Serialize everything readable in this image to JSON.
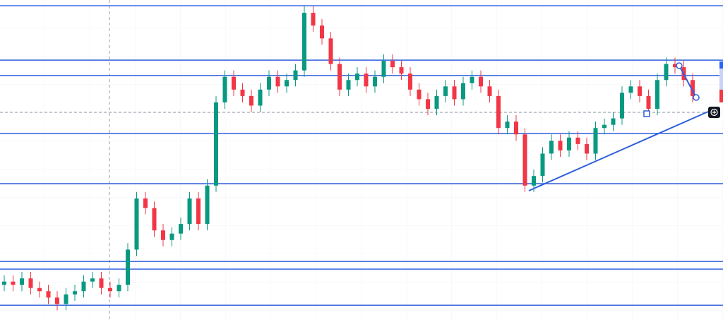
{
  "chart_data": {
    "type": "candlestick",
    "ylim": [
      0,
      100
    ],
    "up_color": "#089981",
    "down_color": "#f23645",
    "level_color": "#2f5fdb",
    "open": [
      11,
      12,
      11,
      13,
      10,
      9,
      7,
      5,
      8,
      9,
      12,
      13,
      10,
      9,
      11,
      22,
      38,
      35,
      28,
      25,
      27,
      30,
      38,
      30,
      42,
      68,
      76,
      72,
      70,
      67,
      72,
      76,
      73,
      75,
      78,
      96,
      92,
      88,
      80,
      72,
      75,
      77,
      73,
      76,
      81,
      79,
      77,
      72,
      69,
      66,
      70,
      73,
      69,
      74,
      76,
      73,
      70,
      60,
      62,
      58,
      42,
      45,
      52,
      56,
      53,
      57,
      55,
      52,
      60,
      61,
      63,
      71,
      73,
      70,
      66,
      75,
      80,
      79,
      75
    ],
    "high": [
      14,
      14,
      15,
      15,
      12,
      11,
      9,
      10,
      11,
      14,
      15,
      15,
      12,
      13,
      24,
      40,
      40,
      37,
      30,
      29,
      32,
      40,
      40,
      44,
      70,
      78,
      78,
      74,
      72,
      74,
      78,
      78,
      77,
      80,
      98,
      98,
      94,
      90,
      82,
      77,
      79,
      79,
      78,
      83,
      83,
      81,
      79,
      74,
      71,
      72,
      75,
      75,
      76,
      78,
      78,
      75,
      72,
      64,
      64,
      60,
      47,
      54,
      58,
      58,
      59,
      59,
      57,
      62,
      63,
      65,
      73,
      75,
      75,
      72,
      77,
      82,
      82,
      81,
      77
    ],
    "low": [
      9,
      9,
      9,
      8,
      7,
      5,
      3,
      3,
      6,
      7,
      10,
      8,
      7,
      7,
      9,
      20,
      33,
      26,
      23,
      23,
      25,
      28,
      28,
      28,
      40,
      66,
      70,
      68,
      65,
      65,
      70,
      71,
      71,
      73,
      76,
      90,
      86,
      78,
      70,
      70,
      73,
      71,
      71,
      74,
      77,
      75,
      70,
      67,
      64,
      64,
      68,
      67,
      67,
      72,
      71,
      68,
      58,
      58,
      56,
      40,
      40,
      43,
      50,
      51,
      51,
      53,
      50,
      50,
      58,
      59,
      61,
      69,
      68,
      64,
      64,
      73,
      77,
      73,
      68
    ],
    "close": [
      12,
      11,
      13,
      10,
      9,
      7,
      5,
      8,
      9,
      12,
      13,
      10,
      9,
      11,
      22,
      38,
      35,
      28,
      25,
      27,
      30,
      38,
      30,
      42,
      68,
      76,
      72,
      70,
      67,
      72,
      76,
      73,
      75,
      78,
      96,
      92,
      88,
      80,
      72,
      75,
      77,
      73,
      76,
      81,
      79,
      77,
      72,
      69,
      66,
      70,
      73,
      69,
      74,
      76,
      73,
      70,
      60,
      62,
      58,
      42,
      45,
      52,
      56,
      53,
      57,
      55,
      52,
      60,
      61,
      63,
      71,
      73,
      70,
      66,
      75,
      80,
      79,
      75,
      70
    ],
    "levels": [
      98.2,
      81.2,
      76.4,
      58.3,
      42.6,
      18.3,
      15.9,
      4.6
    ],
    "price_line": 64.9
  }
}
